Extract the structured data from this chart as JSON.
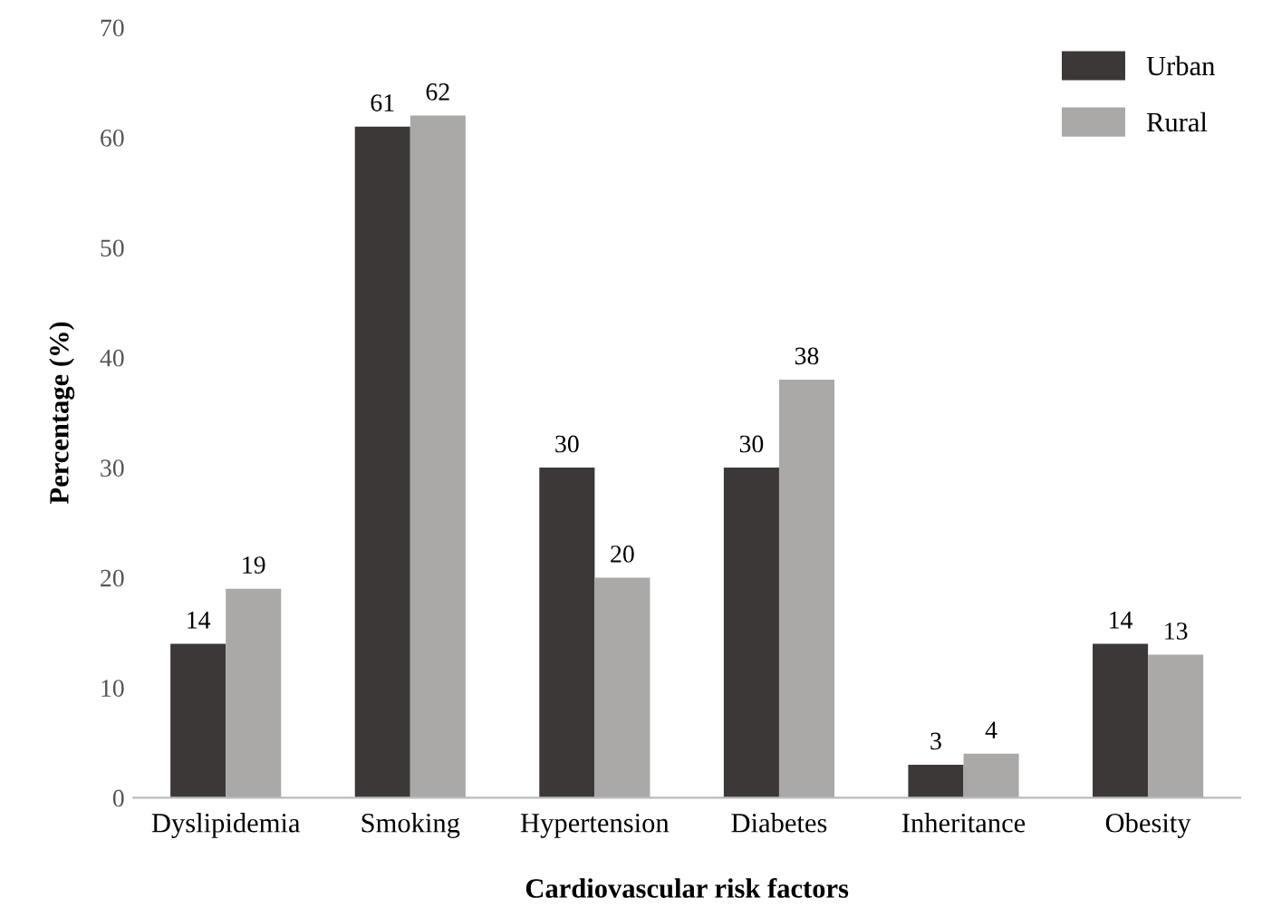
{
  "chart_data": {
    "type": "bar",
    "xlabel": "Cardiovascular risk factors",
    "ylabel": "Percentage (%)",
    "categories": [
      "Dyslipidemia",
      "Smoking",
      "Hypertension",
      "Diabetes",
      "Inheritance",
      "Obesity"
    ],
    "series": [
      {
        "name": "Urban",
        "color": "#3b3837",
        "values": [
          14,
          61,
          30,
          30,
          3,
          14
        ]
      },
      {
        "name": "Rural",
        "color": "#aaa9a8",
        "values": [
          19,
          62,
          20,
          38,
          4,
          13
        ]
      }
    ],
    "ylim": [
      0,
      70
    ],
    "yticks": [
      0,
      10,
      20,
      30,
      40,
      50,
      60,
      70
    ],
    "grid": false,
    "legend": "top right",
    "data_labels": true
  }
}
